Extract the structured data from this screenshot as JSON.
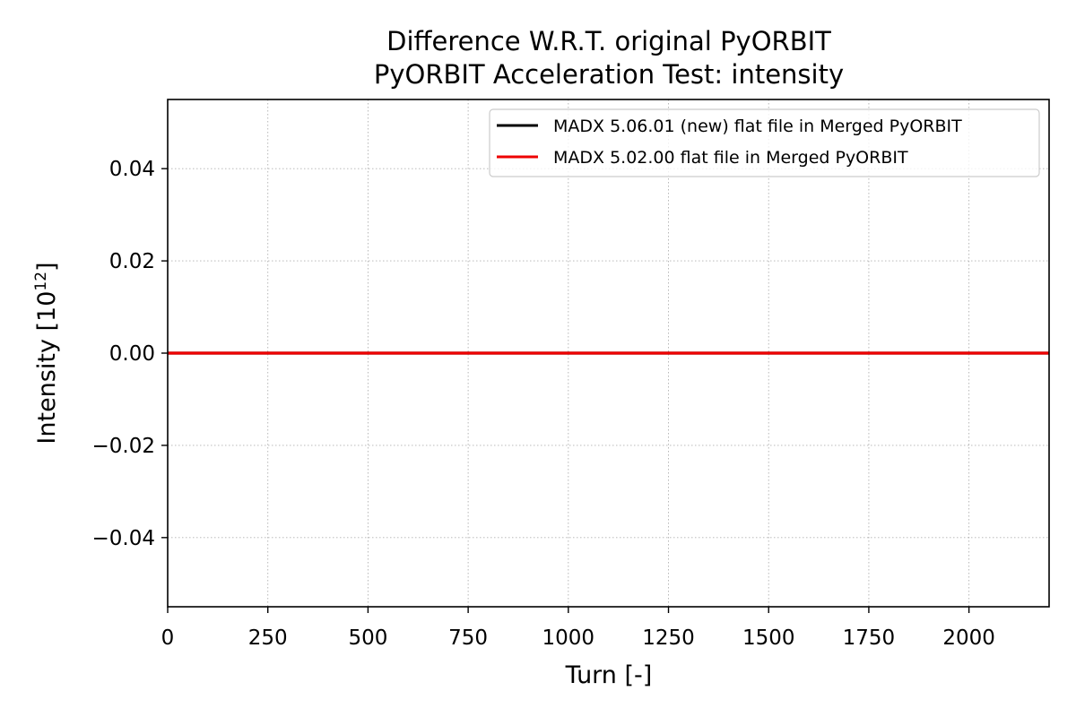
{
  "chart_data": {
    "type": "line",
    "title": "Difference W.R.T. original PyORBIT",
    "subtitle": "PyORBIT Acceleration Test: intensity",
    "xlabel": "Turn [-]",
    "ylabel_prefix": "Intensity [10",
    "ylabel_exponent": "12",
    "ylabel_suffix": "]",
    "xlim": [
      0,
      2200
    ],
    "ylim": [
      -0.055,
      0.055
    ],
    "x_ticks": [
      0,
      250,
      500,
      750,
      1000,
      1250,
      1500,
      1750,
      2000
    ],
    "x_tick_labels": [
      "0",
      "250",
      "500",
      "750",
      "1000",
      "1250",
      "1500",
      "1750",
      "2000"
    ],
    "y_ticks": [
      -0.04,
      -0.02,
      0.0,
      0.02,
      0.04
    ],
    "y_tick_labels": [
      "−0.04",
      "−0.02",
      "0.00",
      "0.02",
      "0.04"
    ],
    "grid": true,
    "legend_position": "top-right",
    "series": [
      {
        "name": "MADX 5.06.01 (new) flat file in Merged PyORBIT",
        "color": "#000000",
        "x": [
          0,
          2200
        ],
        "y": [
          0.0,
          0.0
        ]
      },
      {
        "name": "MADX 5.02.00 flat file in Merged PyORBIT",
        "color": "#ee0000",
        "x": [
          0,
          2200
        ],
        "y": [
          0.0,
          0.0
        ]
      }
    ]
  }
}
